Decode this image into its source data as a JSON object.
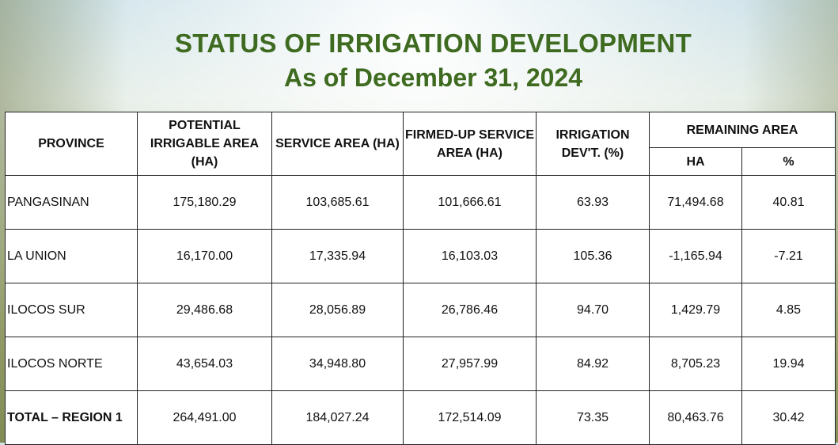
{
  "title": {
    "line1": "STATUS OF IRRIGATION DEVELOPMENT",
    "line2": "As of December 31, 2024"
  },
  "table": {
    "headers": {
      "province": "PROVINCE",
      "potential": "POTENTIAL IRRIGABLE AREA (HA)",
      "service": "SERVICE AREA (HA)",
      "firmed": "FIRMED-UP SERVICE AREA  (HA)",
      "dev": "IRRIGATION DEV'T. (%)",
      "remaining": "REMAINING AREA",
      "remaining_ha": "HA",
      "remaining_pct": "%"
    },
    "rows": [
      {
        "province": "PANGASINAN",
        "potential": "175,180.29",
        "service": "103,685.61",
        "firmed": "101,666.61",
        "dev": "63.93",
        "rem_ha": "71,494.68",
        "rem_pct": "40.81"
      },
      {
        "province": "LA UNION",
        "potential": "16,170.00",
        "service": "17,335.94",
        "firmed": "16,103.03",
        "dev": "105.36",
        "rem_ha": "-1,165.94",
        "rem_pct": "-7.21"
      },
      {
        "province": "ILOCOS SUR",
        "potential": "29,486.68",
        "service": "28,056.89",
        "firmed": "26,786.46",
        "dev": "94.70",
        "rem_ha": "1,429.79",
        "rem_pct": "4.85"
      },
      {
        "province": "ILOCOS NORTE",
        "potential": "43,654.03",
        "service": "34,948.80",
        "firmed": "27,957.99",
        "dev": "84.92",
        "rem_ha": "8,705.23",
        "rem_pct": "19.94"
      },
      {
        "province": "TOTAL – REGION 1",
        "potential": "264,491.00",
        "service": "184,027.24",
        "firmed": "172,514.09",
        "dev": "73.35",
        "rem_ha": "80,463.76",
        "rem_pct": "30.42"
      }
    ]
  }
}
